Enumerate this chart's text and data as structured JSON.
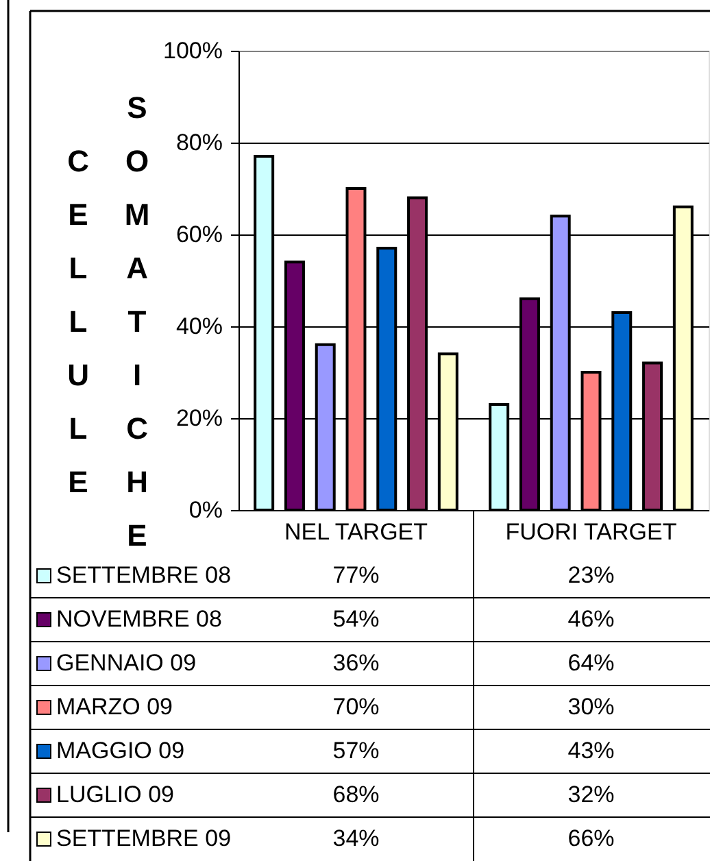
{
  "chart_data": {
    "type": "bar",
    "ylabel": "CELLULE SOMATICHE",
    "categories": [
      "NEL TARGET",
      "FUORI TARGET"
    ],
    "series": [
      {
        "name": "SETTEMBRE 08",
        "color": "#ccffff",
        "values": [
          77,
          23
        ],
        "value_labels": [
          "77%",
          "23%"
        ]
      },
      {
        "name": "NOVEMBRE 08",
        "color": "#660066",
        "values": [
          54,
          46
        ],
        "value_labels": [
          "54%",
          "46%"
        ]
      },
      {
        "name": "GENNAIO 09",
        "color": "#9999ff",
        "values": [
          36,
          64
        ],
        "value_labels": [
          "36%",
          "64%"
        ]
      },
      {
        "name": "MARZO 09",
        "color": "#ff8080",
        "values": [
          70,
          30
        ],
        "value_labels": [
          "70%",
          "30%"
        ]
      },
      {
        "name": "MAGGIO 09",
        "color": "#0066cc",
        "values": [
          57,
          43
        ],
        "value_labels": [
          "57%",
          "43%"
        ]
      },
      {
        "name": "LUGLIO 09",
        "color": "#993366",
        "values": [
          68,
          32
        ],
        "value_labels": [
          "68%",
          "32%"
        ]
      },
      {
        "name": "SETTEMBRE 09",
        "color": "#ffffcc",
        "values": [
          34,
          66
        ],
        "value_labels": [
          "34%",
          "66%"
        ]
      }
    ],
    "ylim": [
      0,
      100
    ],
    "yticks": [
      {
        "value": 0,
        "label": "0%"
      },
      {
        "value": 20,
        "label": "20%"
      },
      {
        "value": 40,
        "label": "40%"
      },
      {
        "value": 60,
        "label": "60%"
      },
      {
        "value": 80,
        "label": "80%"
      },
      {
        "value": 100,
        "label": "100%"
      }
    ],
    "grid": "y",
    "legend": "bottom"
  }
}
